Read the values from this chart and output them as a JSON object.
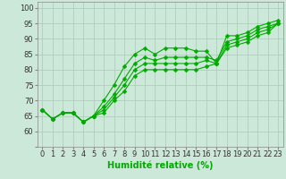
{
  "xlabel": "Humidité relative (%)",
  "ylabel": "",
  "background_color": "#cce8d8",
  "grid_color": "#aac8b8",
  "line_color": "#00aa00",
  "x": [
    0,
    1,
    2,
    3,
    4,
    5,
    6,
    7,
    8,
    9,
    10,
    11,
    12,
    13,
    14,
    15,
    16,
    17,
    18,
    19,
    20,
    21,
    22,
    23
  ],
  "series": [
    [
      67,
      64,
      66,
      66,
      63,
      65,
      70,
      75,
      81,
      85,
      87,
      85,
      87,
      87,
      87,
      86,
      86,
      82,
      91,
      91,
      92,
      94,
      95,
      96
    ],
    [
      67,
      64,
      66,
      66,
      63,
      65,
      68,
      72,
      77,
      82,
      84,
      83,
      84,
      84,
      84,
      84,
      84,
      83,
      89,
      90,
      91,
      93,
      94,
      95
    ],
    [
      67,
      64,
      66,
      66,
      63,
      65,
      67,
      71,
      75,
      80,
      82,
      82,
      82,
      82,
      82,
      82,
      83,
      82,
      88,
      89,
      90,
      92,
      93,
      95
    ],
    [
      67,
      64,
      66,
      66,
      63,
      65,
      66,
      70,
      73,
      78,
      80,
      80,
      80,
      80,
      80,
      80,
      81,
      82,
      87,
      88,
      89,
      91,
      92,
      95
    ]
  ],
  "ylim": [
    55,
    102
  ],
  "xlim": [
    -0.5,
    23.5
  ],
  "xlabel_fontsize": 7,
  "tick_fontsize": 6,
  "linewidth": 0.8,
  "markersize": 2.5
}
